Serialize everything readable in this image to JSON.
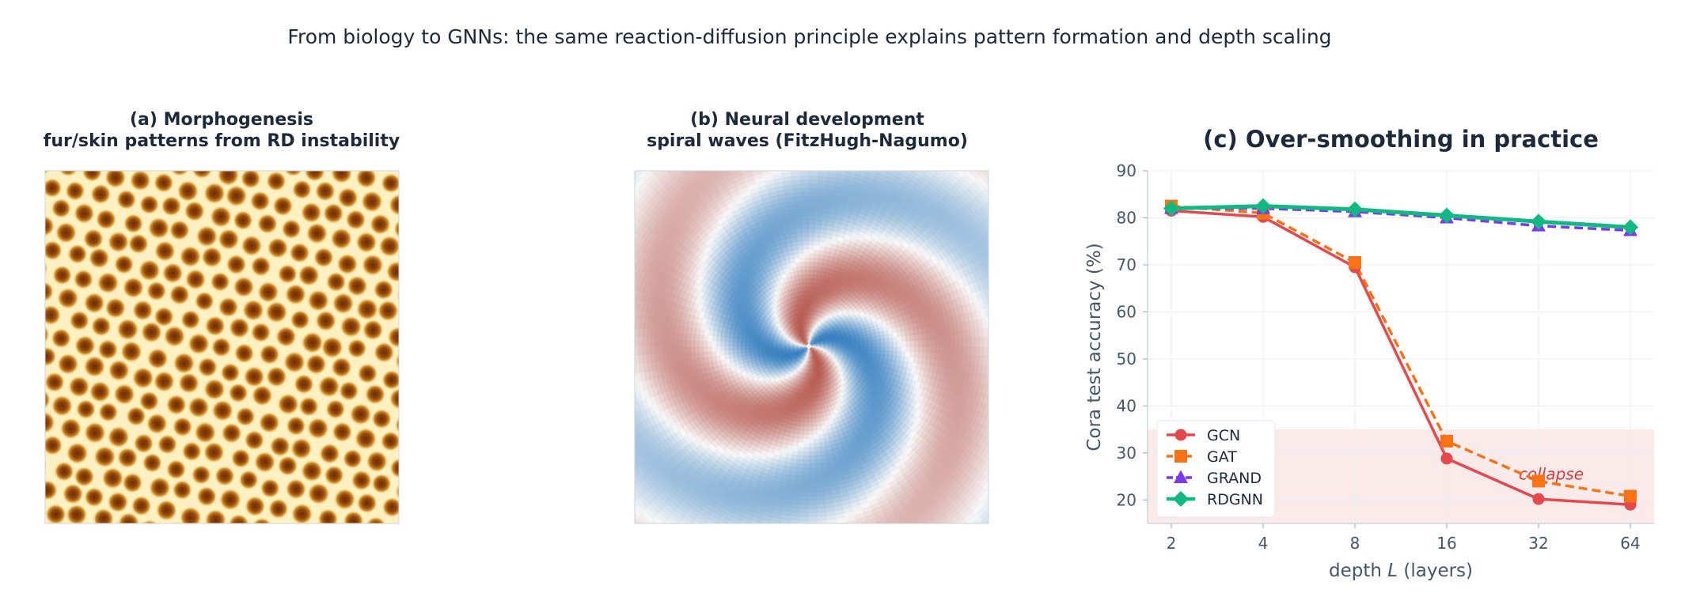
{
  "suptitle": "From biology to GNNs:  the same reaction-diffusion principle explains pattern formation and depth scaling",
  "panel_a": {
    "title_line1": "(a) Morphogenesis",
    "title_line2": "fur/skin patterns from RD instability",
    "colormap": [
      "#fff4cc",
      "#f7c55a",
      "#b86a12",
      "#6b2e06"
    ]
  },
  "panel_b": {
    "title_line1": "(b) Neural development",
    "title_line2": "spiral waves (FitzHugh-Nagumo)",
    "colormap": [
      "#1f5f9e",
      "#f7f7f7",
      "#c23b2f"
    ]
  },
  "chart_data": {
    "type": "line",
    "title": "(c) Over-smoothing in practice",
    "xlabel_prefix": "depth ",
    "xlabel_var": "L",
    "xlabel_suffix": " (layers)",
    "ylabel": "Cora test accuracy (%)",
    "x": [
      2,
      4,
      8,
      16,
      32,
      64
    ],
    "x_scale": "log2",
    "ylim": [
      15,
      90
    ],
    "yticks": [
      20,
      30,
      40,
      50,
      60,
      70,
      80,
      90
    ],
    "grid": true,
    "legend_position": "lower-left",
    "series": [
      {
        "name": "GCN",
        "values": [
          81.5,
          80.2,
          69.5,
          28.8,
          20.2,
          19.0
        ],
        "color": "#e5484d",
        "marker": "circle",
        "dash": "solid"
      },
      {
        "name": "GAT",
        "values": [
          82.5,
          81.0,
          70.5,
          32.5,
          24.0,
          20.8
        ],
        "color": "#f97316",
        "marker": "square",
        "dash": "dashed"
      },
      {
        "name": "GRAND",
        "values": [
          82.0,
          82.0,
          81.3,
          80.0,
          78.3,
          77.3
        ],
        "color": "#7c3aed",
        "marker": "triangle",
        "dash": "dashed"
      },
      {
        "name": "RDGNN",
        "values": [
          82.0,
          82.5,
          81.8,
          80.5,
          79.2,
          78.0
        ],
        "color": "#10b981",
        "marker": "diamond",
        "dash": "solid"
      }
    ],
    "collapse_band": {
      "y_from": 15,
      "y_to": 35,
      "label": "collapse",
      "label_x": 32,
      "label_y": 25,
      "color": "#fbeaea"
    }
  }
}
